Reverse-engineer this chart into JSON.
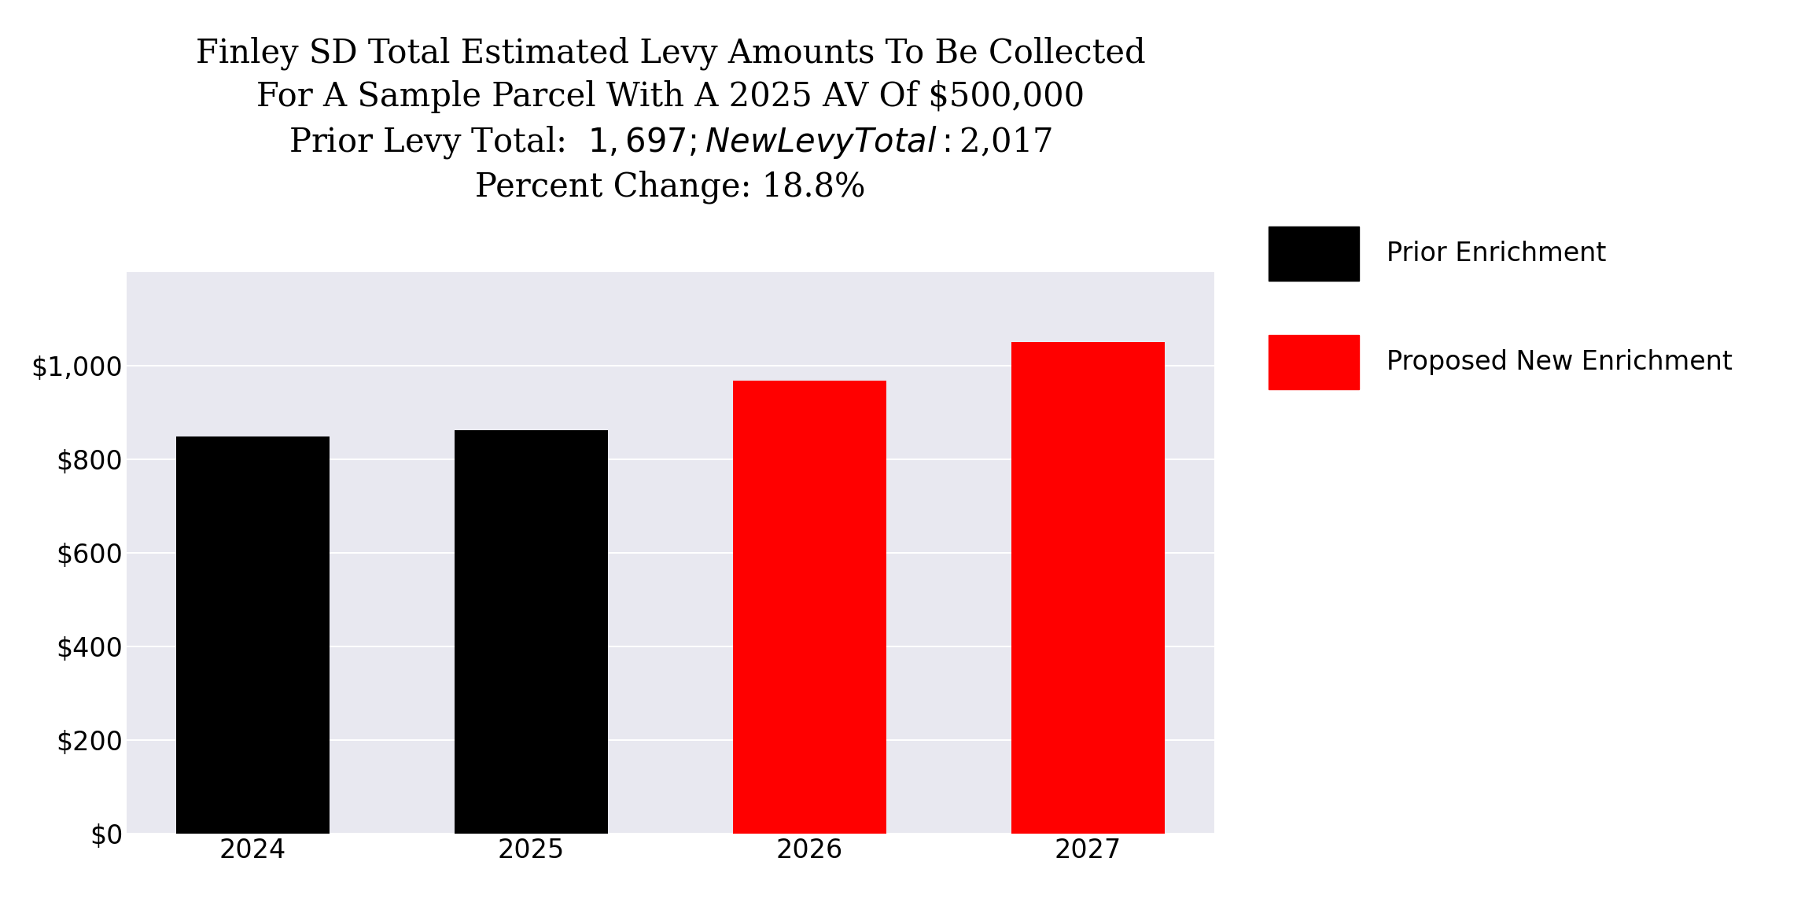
{
  "title_line1": "Finley SD Total Estimated Levy Amounts To Be Collected",
  "title_line2": "For A Sample Parcel With A 2025 AV Of $500,000",
  "title_line3": "Prior Levy Total:  $1,697; New Levy Total: $2,017",
  "title_line4": "Percent Change: 18.8%",
  "categories": [
    "2024",
    "2025",
    "2026",
    "2027"
  ],
  "values": [
    848,
    862,
    968,
    1049
  ],
  "bar_colors": [
    "#000000",
    "#000000",
    "#ff0000",
    "#ff0000"
  ],
  "legend_labels": [
    "Prior Enrichment",
    "Proposed New Enrichment"
  ],
  "legend_colors": [
    "#000000",
    "#ff0000"
  ],
  "ylim": [
    0,
    1200
  ],
  "ytick_values": [
    0,
    200,
    400,
    600,
    800,
    1000
  ],
  "background_color": "#e8e8f0",
  "figure_background": "#ffffff",
  "title_fontsize": 30,
  "tick_fontsize": 24,
  "legend_fontsize": 24
}
